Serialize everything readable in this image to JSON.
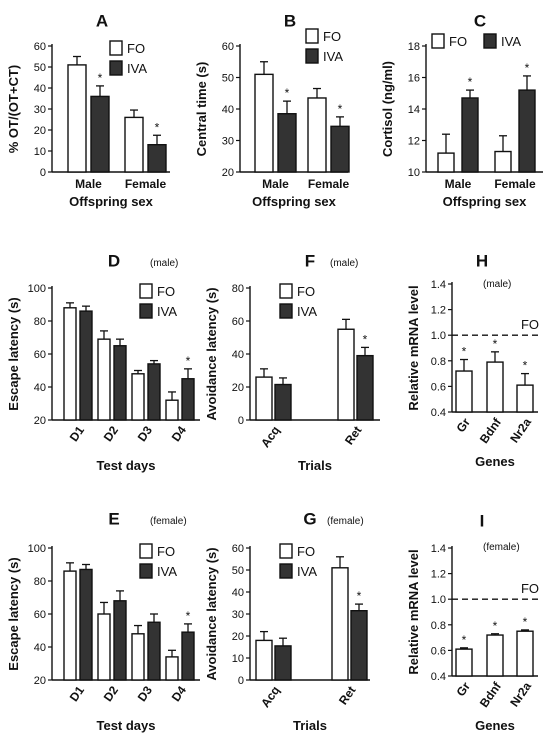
{
  "chart_data": [
    {
      "panel": "A",
      "type": "bar",
      "note": "",
      "categories": [
        "Male",
        "Female"
      ],
      "series": [
        {
          "name": "FO",
          "values": [
            51,
            26
          ],
          "errors": [
            4,
            3.5
          ]
        },
        {
          "name": "IVA",
          "values": [
            36,
            13
          ],
          "errors": [
            5,
            4.5
          ]
        }
      ],
      "stars": [
        {
          "category": 0,
          "series": 1
        },
        {
          "category": 1,
          "series": 1
        }
      ],
      "ylabel": "% OT/(OT+CT)",
      "xlabel": "Offspring sex",
      "ylim": [
        0,
        60
      ],
      "yticks": [
        "0",
        "10",
        "20",
        "30",
        "40",
        "50",
        "60"
      ],
      "legend": {
        "position": "top-right",
        "layout": "stacked"
      }
    },
    {
      "panel": "B",
      "type": "bar",
      "note": "",
      "categories": [
        "Male",
        "Female"
      ],
      "series": [
        {
          "name": "FO",
          "values": [
            51,
            43.5
          ],
          "errors": [
            4,
            3
          ]
        },
        {
          "name": "IVA",
          "values": [
            38.5,
            34.5
          ],
          "errors": [
            4,
            3
          ]
        }
      ],
      "stars": [
        {
          "category": 0,
          "series": 1
        },
        {
          "category": 1,
          "series": 1
        }
      ],
      "ylabel": "Central time (s)",
      "xlabel": "Offspring sex",
      "ylim": [
        20,
        60
      ],
      "yticks": [
        "20",
        "30",
        "40",
        "50",
        "60"
      ],
      "legend": {
        "position": "top-right",
        "layout": "stacked"
      }
    },
    {
      "panel": "C",
      "type": "bar",
      "note": "",
      "categories": [
        "Male",
        "Female"
      ],
      "series": [
        {
          "name": "FO",
          "values": [
            11.2,
            11.3
          ],
          "errors": [
            1.2,
            1
          ]
        },
        {
          "name": "IVA",
          "values": [
            14.7,
            15.2
          ],
          "errors": [
            0.5,
            0.9
          ]
        }
      ],
      "stars": [
        {
          "category": 0,
          "series": 1
        },
        {
          "category": 1,
          "series": 1
        }
      ],
      "ylabel": "Cortisol (ng/ml)",
      "xlabel": "Offspring sex",
      "ylim": [
        10,
        18
      ],
      "yticks": [
        "10",
        "12",
        "14",
        "16",
        "18"
      ],
      "legend": {
        "position": "top",
        "layout": "inline"
      }
    },
    {
      "panel": "D",
      "type": "bar",
      "note": "(male)",
      "categories": [
        "D1",
        "D2",
        "D3",
        "D4"
      ],
      "rotate_ticks": true,
      "series": [
        {
          "name": "FO",
          "values": [
            88,
            69,
            48,
            32
          ],
          "errors": [
            3,
            5,
            2,
            5
          ]
        },
        {
          "name": "IVA",
          "values": [
            86,
            65,
            54,
            45
          ],
          "errors": [
            3,
            4,
            2,
            6
          ]
        }
      ],
      "stars": [
        {
          "category": 3,
          "series": 1
        }
      ],
      "ylabel": "Escape latency (s)",
      "xlabel": "Test days",
      "ylim": [
        20,
        100
      ],
      "yticks": [
        "20",
        "40",
        "60",
        "80",
        "100"
      ],
      "legend": {
        "position": "top-right",
        "layout": "stacked"
      }
    },
    {
      "panel": "E",
      "type": "bar",
      "note": "(female)",
      "categories": [
        "D1",
        "D2",
        "D3",
        "D4"
      ],
      "rotate_ticks": true,
      "series": [
        {
          "name": "FO",
          "values": [
            86,
            60,
            48,
            34
          ],
          "errors": [
            5,
            7,
            5,
            4
          ]
        },
        {
          "name": "IVA",
          "values": [
            87,
            68,
            55,
            49
          ],
          "errors": [
            3,
            6,
            5,
            5
          ]
        }
      ],
      "stars": [
        {
          "category": 3,
          "series": 1
        }
      ],
      "ylabel": "Escape latency (s)",
      "xlabel": "Test days",
      "ylim": [
        20,
        100
      ],
      "yticks": [
        "20",
        "40",
        "60",
        "80",
        "100"
      ],
      "legend": {
        "position": "top-right",
        "layout": "stacked"
      }
    },
    {
      "panel": "F",
      "type": "bar",
      "note": "(male)",
      "categories": [
        "Acq",
        "Ret"
      ],
      "rotate_ticks": true,
      "series": [
        {
          "name": "FO",
          "values": [
            26,
            55
          ],
          "errors": [
            5,
            6
          ]
        },
        {
          "name": "IVA",
          "values": [
            21.5,
            39
          ],
          "errors": [
            4,
            5
          ]
        }
      ],
      "stars": [
        {
          "category": 1,
          "series": 1
        }
      ],
      "ylabel": "Avoidance latency (s)",
      "xlabel": "Trials",
      "ylim": [
        0,
        80
      ],
      "yticks": [
        "0",
        "20",
        "40",
        "60",
        "80"
      ],
      "legend": {
        "position": "top-left",
        "layout": "stacked"
      }
    },
    {
      "panel": "G",
      "type": "bar",
      "note": "(female)",
      "categories": [
        "Acq",
        "Ret"
      ],
      "rotate_ticks": true,
      "series": [
        {
          "name": "FO",
          "values": [
            18,
            51
          ],
          "errors": [
            4,
            5
          ]
        },
        {
          "name": "IVA",
          "values": [
            15.5,
            31.5
          ],
          "errors": [
            3.5,
            3
          ]
        }
      ],
      "stars": [
        {
          "category": 1,
          "series": 1
        }
      ],
      "ylabel": "Avoidance latency (s)",
      "xlabel": "Trials",
      "ylim": [
        0,
        60
      ],
      "yticks": [
        "0",
        "10",
        "20",
        "30",
        "40",
        "50",
        "60"
      ],
      "legend": {
        "position": "top-left",
        "layout": "stacked"
      }
    },
    {
      "panel": "H",
      "type": "bar",
      "note": "(male)",
      "categories": [
        "Gr",
        "Bdnf",
        "Nr2a"
      ],
      "rotate_ticks": true,
      "series": [
        {
          "name": "",
          "values": [
            0.72,
            0.79,
            0.61
          ],
          "errors": [
            0.09,
            0.08,
            0.09
          ]
        }
      ],
      "stars": [
        {
          "category": 0,
          "series": 0
        },
        {
          "category": 1,
          "series": 0
        },
        {
          "category": 2,
          "series": 0
        }
      ],
      "reference_line": {
        "value": 1.0,
        "label": "FO"
      },
      "ylabel": "Relative mRNA level",
      "xlabel": "Genes",
      "ylim": [
        0.4,
        1.4
      ],
      "yticks": [
        "0.4",
        "0.6",
        "0.8",
        "1.0",
        "1.2",
        "1.4"
      ]
    },
    {
      "panel": "I",
      "type": "bar",
      "note": "(female)",
      "categories": [
        "Gr",
        "Bdnf",
        "Nr2a"
      ],
      "rotate_ticks": true,
      "series": [
        {
          "name": "",
          "values": [
            0.61,
            0.72,
            0.75
          ],
          "errors": [
            0.01,
            0.01,
            0.01
          ]
        }
      ],
      "stars": [
        {
          "category": 0,
          "series": 0
        },
        {
          "category": 1,
          "series": 0
        },
        {
          "category": 2,
          "series": 0
        }
      ],
      "reference_line": {
        "value": 1.0,
        "label": "FO"
      },
      "ylabel": "Relative mRNA level",
      "xlabel": "Genes",
      "ylim": [
        0.4,
        1.4
      ],
      "yticks": [
        "0.4",
        "0.6",
        "0.8",
        "1.0",
        "1.2",
        "1.4"
      ]
    }
  ],
  "colors": {
    "FO": "#ffffff",
    "IVA": "#333333",
    "stroke": "#111111"
  }
}
